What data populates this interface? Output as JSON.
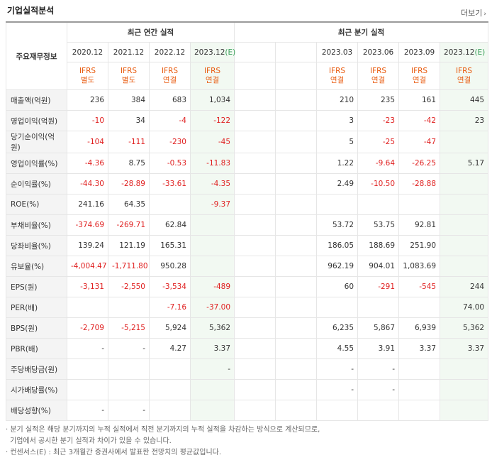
{
  "title": "기업실적분석",
  "more_label": "더보기",
  "header": {
    "row_label": "주요재무정보",
    "annual_group": "최근 연간 실적",
    "quarter_group": "최근 분기 실적",
    "annual_periods": [
      "2020.12",
      "2021.12",
      "2022.12",
      "2023.12"
    ],
    "annual_est_suffix": "(E)",
    "quarter_periods": [
      "2023.03",
      "2023.06",
      "2023.09",
      "2023.12"
    ],
    "quarter_est_suffix": "(E)",
    "annual_ifrs": [
      [
        "IFRS",
        "별도"
      ],
      [
        "IFRS",
        "별도"
      ],
      [
        "IFRS",
        "연결"
      ],
      [
        "IFRS",
        "연결"
      ]
    ],
    "quarter_ifrs": [
      [
        "IFRS",
        "연결"
      ],
      [
        "IFRS",
        "연결"
      ],
      [
        "IFRS",
        "연결"
      ],
      [
        "IFRS",
        "연결"
      ]
    ]
  },
  "rows": [
    {
      "label": "매출액(억원)",
      "annual": [
        "236",
        "384",
        "683",
        "1,034"
      ],
      "quarter": [
        "210",
        "235",
        "161",
        "445"
      ]
    },
    {
      "label": "영업이익(억원)",
      "annual": [
        "-10",
        "34",
        "-4",
        "-122"
      ],
      "quarter": [
        "3",
        "-23",
        "-42",
        "23"
      ]
    },
    {
      "label": "당기순이익(억원)",
      "annual": [
        "-104",
        "-111",
        "-230",
        "-45"
      ],
      "quarter": [
        "5",
        "-25",
        "-47",
        ""
      ]
    },
    {
      "label": "영업이익률(%)",
      "annual": [
        "-4.36",
        "8.75",
        "-0.53",
        "-11.83"
      ],
      "quarter": [
        "1.22",
        "-9.64",
        "-26.25",
        "5.17"
      ]
    },
    {
      "label": "순이익률(%)",
      "annual": [
        "-44.30",
        "-28.89",
        "-33.61",
        "-4.35"
      ],
      "quarter": [
        "2.49",
        "-10.50",
        "-28.88",
        ""
      ]
    },
    {
      "label": "ROE(%)",
      "annual": [
        "241.16",
        "64.35",
        "",
        "-9.37"
      ],
      "quarter": [
        "",
        "",
        "",
        ""
      ]
    },
    {
      "label": "부채비율(%)",
      "annual": [
        "-374.69",
        "-269.71",
        "62.84",
        ""
      ],
      "quarter": [
        "53.72",
        "53.75",
        "92.81",
        ""
      ]
    },
    {
      "label": "당좌비율(%)",
      "annual": [
        "139.24",
        "121.19",
        "165.31",
        ""
      ],
      "quarter": [
        "186.05",
        "188.69",
        "251.90",
        ""
      ]
    },
    {
      "label": "유보율(%)",
      "annual": [
        "-4,004.47",
        "-1,711.80",
        "950.28",
        ""
      ],
      "quarter": [
        "962.19",
        "904.01",
        "1,083.69",
        ""
      ]
    },
    {
      "label": "EPS(원)",
      "annual": [
        "-3,131",
        "-2,550",
        "-3,534",
        "-489"
      ],
      "quarter": [
        "60",
        "-291",
        "-545",
        "244"
      ]
    },
    {
      "label": "PER(배)",
      "annual": [
        "",
        "",
        "-7.16",
        "-37.00"
      ],
      "quarter": [
        "",
        "",
        "",
        "74.00"
      ]
    },
    {
      "label": "BPS(원)",
      "annual": [
        "-2,709",
        "-5,215",
        "5,924",
        "5,362"
      ],
      "quarter": [
        "6,235",
        "5,867",
        "6,939",
        "5,362"
      ]
    },
    {
      "label": "PBR(배)",
      "annual": [
        "-",
        "-",
        "4.27",
        "3.37"
      ],
      "quarter": [
        "4.55",
        "3.91",
        "3.37",
        "3.37"
      ]
    },
    {
      "label": "주당배당금(원)",
      "annual": [
        "",
        "",
        "",
        "-"
      ],
      "quarter": [
        "-",
        "-",
        "",
        ""
      ]
    },
    {
      "label": "시가배당률(%)",
      "annual": [
        "",
        "",
        "",
        ""
      ],
      "quarter": [
        "-",
        "-",
        "",
        ""
      ]
    },
    {
      "label": "배당성향(%)",
      "annual": [
        "-",
        "-",
        "",
        ""
      ],
      "quarter": [
        "",
        "",
        "",
        ""
      ]
    }
  ],
  "notes": [
    "· 분기 실적은 해당 분기까지의 누적 실적에서 직전 분기까지의 누적 실적을 차감하는 방식으로 계산되므로,",
    "  기업에서 공시한 분기 실적과 차이가 있을 수 있습니다.",
    "· 컨센서스(E) : 최근 3개월간 증권사에서 발표한 전망치의 평균값입니다."
  ]
}
